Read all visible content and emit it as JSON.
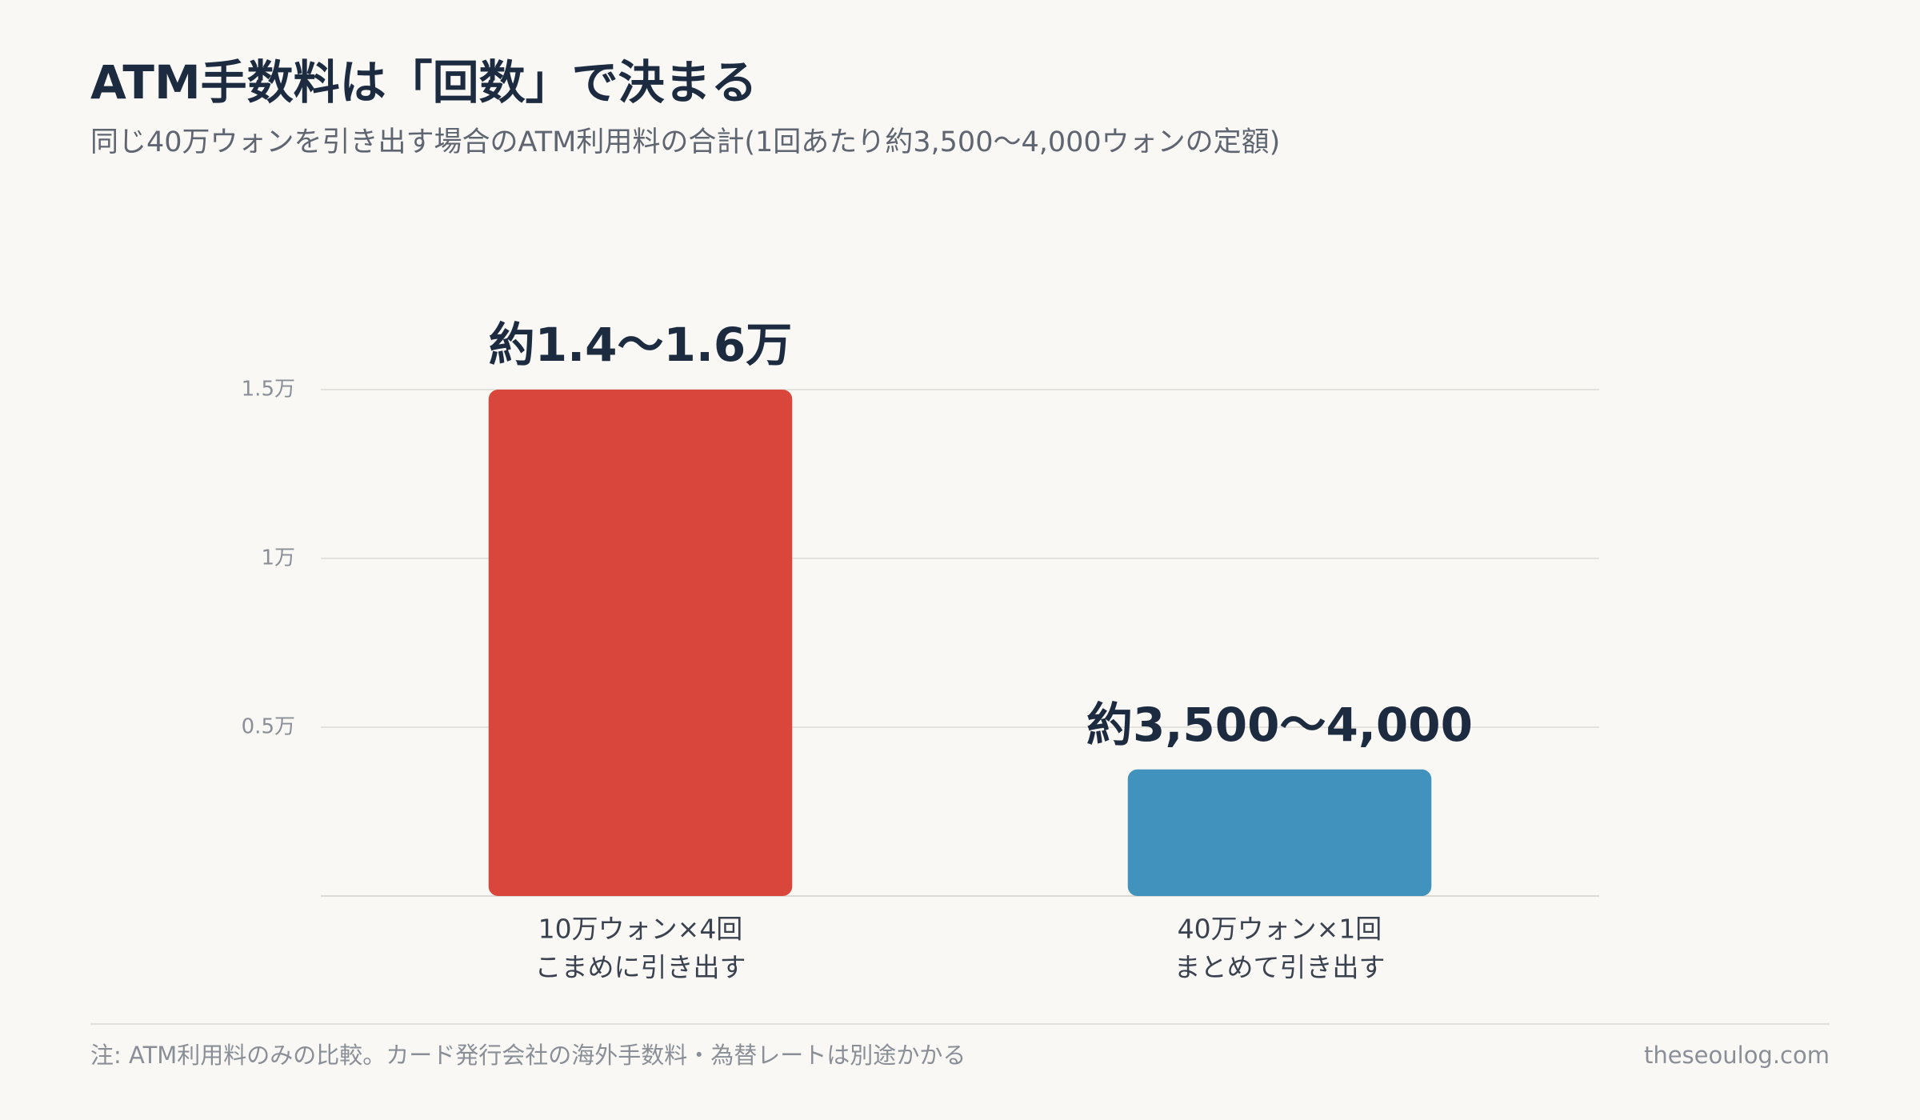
{
  "chart_data": {
    "type": "bar",
    "title": "ATM手数料は「回数」で決まる",
    "subtitle": "同じ40万ウォンを引き出す場合のATM利用料の合計(1回あたり約3,500〜4,000ウォンの定額)",
    "categories": [
      [
        "10万ウォン×4回",
        "こまめに引き出す"
      ],
      [
        "40万ウォン×1回",
        "まとめて引き出す"
      ]
    ],
    "values": [
      15000,
      3750
    ],
    "value_labels": [
      "約1.4〜1.6万",
      "約3,500〜4,000"
    ],
    "colors": [
      "#d9463b",
      "#4193bd"
    ],
    "ylim": [
      0,
      15000
    ],
    "yticks": [
      {
        "value": 5000,
        "label": "0.5万"
      },
      {
        "value": 10000,
        "label": "1万"
      },
      {
        "value": 15000,
        "label": "1.5万"
      }
    ],
    "grid": true,
    "note": "注: ATM利用料のみの比較。カード発行会社の海外手数料・為替レートは別途かかる",
    "source": "theseoulog.com"
  }
}
